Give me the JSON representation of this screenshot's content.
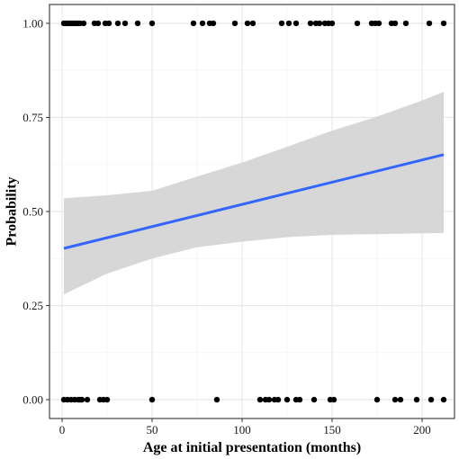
{
  "chart_data": {
    "type": "scatter",
    "title": "",
    "xlabel": "Age at initial presentation (months)",
    "ylabel": "Probability",
    "xlim": [
      -7,
      218
    ],
    "ylim": [
      -0.05,
      1.05
    ],
    "x_ticks": [
      0,
      50,
      100,
      150,
      200
    ],
    "x_tick_labels": [
      "0",
      "50",
      "100",
      "150",
      "200"
    ],
    "y_ticks": [
      0,
      0.25,
      0.5,
      0.75,
      1.0
    ],
    "y_tick_labels": [
      "0.00",
      "0.25",
      "0.50",
      "0.75",
      "1.00"
    ],
    "grid": true,
    "legend": "none",
    "colors": {
      "points": "#000000",
      "fit_line": "#3366ff",
      "confidence_band": "#d3d3d3",
      "major_grid": "#e6e6e6",
      "minor_grid": "#f3f3f3",
      "panel_border": "#333333"
    },
    "series": [
      {
        "type": "scatter",
        "y": 1,
        "x": [
          1,
          2,
          3,
          4,
          5,
          6,
          7,
          8,
          9,
          10,
          12,
          18,
          20,
          24,
          26,
          31,
          35,
          42,
          50,
          73,
          78,
          82,
          84,
          96,
          103,
          106,
          122,
          126,
          130,
          138,
          141,
          143,
          146,
          148,
          150,
          164,
          172,
          174,
          176,
          183,
          185,
          191,
          204,
          212
        ]
      },
      {
        "type": "scatter",
        "y": 0,
        "x": [
          1,
          3,
          5,
          7,
          9,
          10,
          11,
          14,
          21,
          23,
          25,
          50,
          86,
          110,
          113,
          115,
          118,
          120,
          125,
          130,
          132,
          140,
          149,
          151,
          175,
          185,
          188,
          197,
          205,
          212
        ]
      },
      {
        "type": "line",
        "x": [
          1,
          212
        ],
        "y": [
          0.402,
          0.651
        ]
      },
      {
        "type": "area",
        "x": [
          1,
          25,
          50,
          75,
          100,
          125,
          150,
          175,
          200,
          212
        ],
        "lower": [
          0.28,
          0.335,
          0.375,
          0.405,
          0.42,
          0.432,
          0.438,
          0.44,
          0.442,
          0.443
        ],
        "upper": [
          0.535,
          0.543,
          0.555,
          0.593,
          0.63,
          0.672,
          0.715,
          0.752,
          0.795,
          0.818
        ]
      }
    ]
  }
}
